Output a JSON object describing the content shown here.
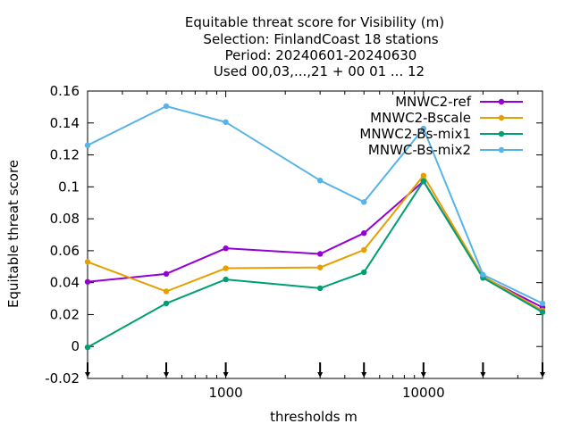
{
  "chart_data": {
    "type": "line",
    "title_lines": [
      "Equitable threat score  for Visibility (m)",
      "Selection: FinlandCoast     18 stations",
      "Period: 20240601-20240630",
      "Used 00,03,...,21 + 00 01 ... 12"
    ],
    "xlabel": "thresholds m",
    "ylabel": "Equitable threat score",
    "xscale": "log",
    "xlim": [
      200,
      40000
    ],
    "ylim": [
      -0.02,
      0.16
    ],
    "x_ticks": [
      {
        "value": 1000,
        "label": "1000"
      },
      {
        "value": 10000,
        "label": "10000"
      }
    ],
    "y_ticks": [
      {
        "value": -0.02,
        "label": "-0.02"
      },
      {
        "value": 0,
        "label": "0"
      },
      {
        "value": 0.02,
        "label": "0.02"
      },
      {
        "value": 0.04,
        "label": "0.04"
      },
      {
        "value": 0.06,
        "label": "0.06"
      },
      {
        "value": 0.08,
        "label": "0.08"
      },
      {
        "value": 0.1,
        "label": "0.1"
      },
      {
        "value": 0.12,
        "label": "0.12"
      },
      {
        "value": 0.14,
        "label": "0.14"
      },
      {
        "value": 0.16,
        "label": "0.16"
      }
    ],
    "threshold_markers": [
      200,
      500,
      1000,
      3000,
      5000,
      10000,
      20000,
      40000
    ],
    "x": [
      200,
      500,
      1000,
      3000,
      5000,
      10000,
      20000,
      40000
    ],
    "series": [
      {
        "name": "MNWC2-ref",
        "color": "#9400d3",
        "values": [
          0.0405,
          0.0455,
          0.0615,
          0.058,
          0.071,
          0.1035,
          0.0435,
          0.0245
        ]
      },
      {
        "name": "MNWC2-Bscale",
        "color": "#e69f00",
        "values": [
          0.053,
          0.0345,
          0.049,
          0.0495,
          0.0605,
          0.107,
          0.044,
          0.0225
        ]
      },
      {
        "name": "MNWC2-Bs-mix1",
        "color": "#009e73",
        "values": [
          -0.0005,
          0.027,
          0.042,
          0.0365,
          0.0465,
          0.1035,
          0.043,
          0.0215
        ]
      },
      {
        "name": "MNWC-Bs-mix2",
        "color": "#56b4e9",
        "values": [
          0.126,
          0.1505,
          0.1405,
          0.104,
          0.0905,
          0.1365,
          0.045,
          0.027
        ]
      }
    ],
    "legend_position": "top-right",
    "grid": false
  }
}
